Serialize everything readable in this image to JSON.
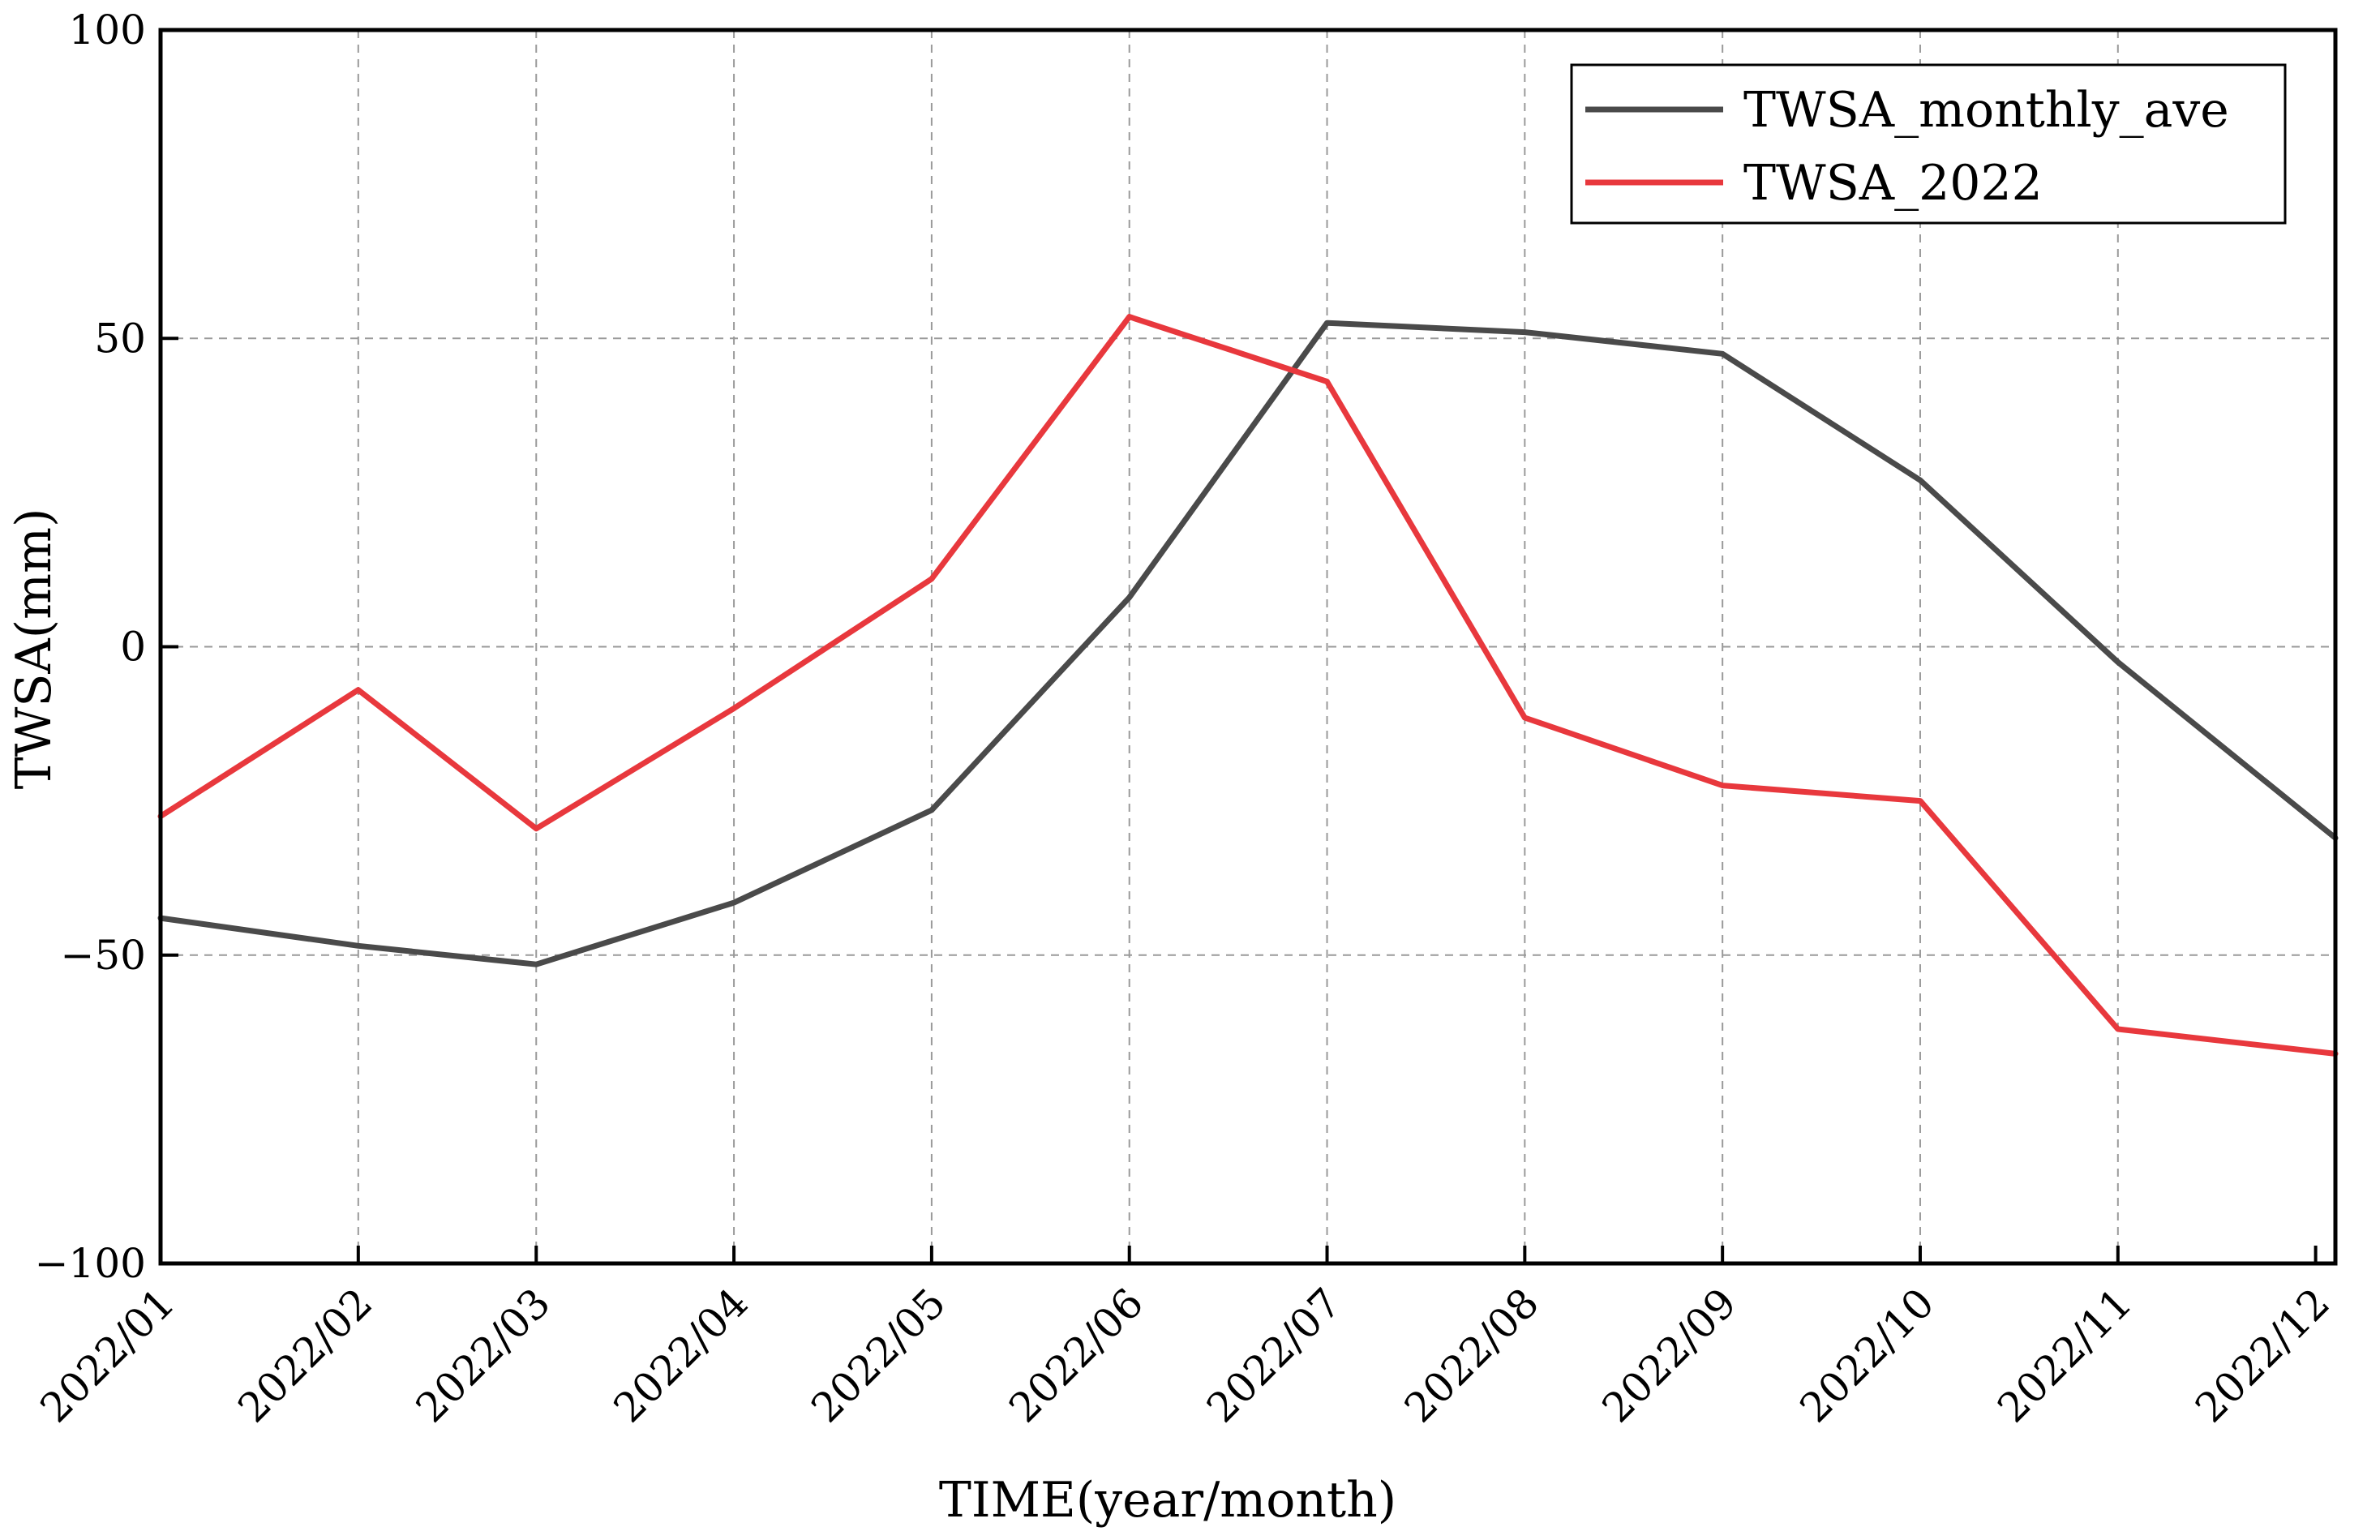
{
  "chart_data": {
    "type": "line",
    "title": "",
    "xlabel": "TIME(year/month)",
    "ylabel": "TWSA(mm)",
    "ylim": [
      -100,
      100
    ],
    "yticks": [
      -100,
      -50,
      0,
      50,
      100
    ],
    "categories": [
      "2022/01",
      "2022/02",
      "2022/03",
      "2022/04",
      "2022/05",
      "2022/06",
      "2022/07",
      "2022/08",
      "2022/09",
      "2022/10",
      "2022/11",
      "2022/12"
    ],
    "x": [
      1,
      2,
      3,
      4,
      5,
      6,
      7,
      8,
      9,
      10,
      11,
      12
    ],
    "x_tick_positions": [
      1,
      2,
      2.9,
      3.9,
      4.9,
      5.9,
      6.9,
      7.9,
      8.9,
      9.9,
      10.9,
      11.9
    ],
    "grid": true,
    "legend_position": "top-right",
    "series": [
      {
        "name": "TWSA_monthly_ave",
        "color": "#4a4a4a",
        "x": [
          1,
          2,
          2.9,
          3.9,
          4.9,
          5.9,
          6.9,
          7.9,
          8.9,
          9.9,
          10.9,
          12
        ],
        "values": [
          -44,
          -48.5,
          -51.5,
          -41.5,
          -26.5,
          8,
          52.5,
          51,
          47.5,
          27,
          -2.5,
          -31
        ]
      },
      {
        "name": "TWSA_2022",
        "color": "#e8383d",
        "x": [
          1,
          2,
          2.9,
          3.9,
          4.9,
          5.9,
          6.9,
          7.9,
          8.9,
          9.9,
          10.9,
          12
        ],
        "values": [
          -27.5,
          -7,
          -29.5,
          -10,
          11,
          53.5,
          43,
          -11.5,
          -22.5,
          -25,
          -62,
          -66
        ]
      }
    ]
  }
}
